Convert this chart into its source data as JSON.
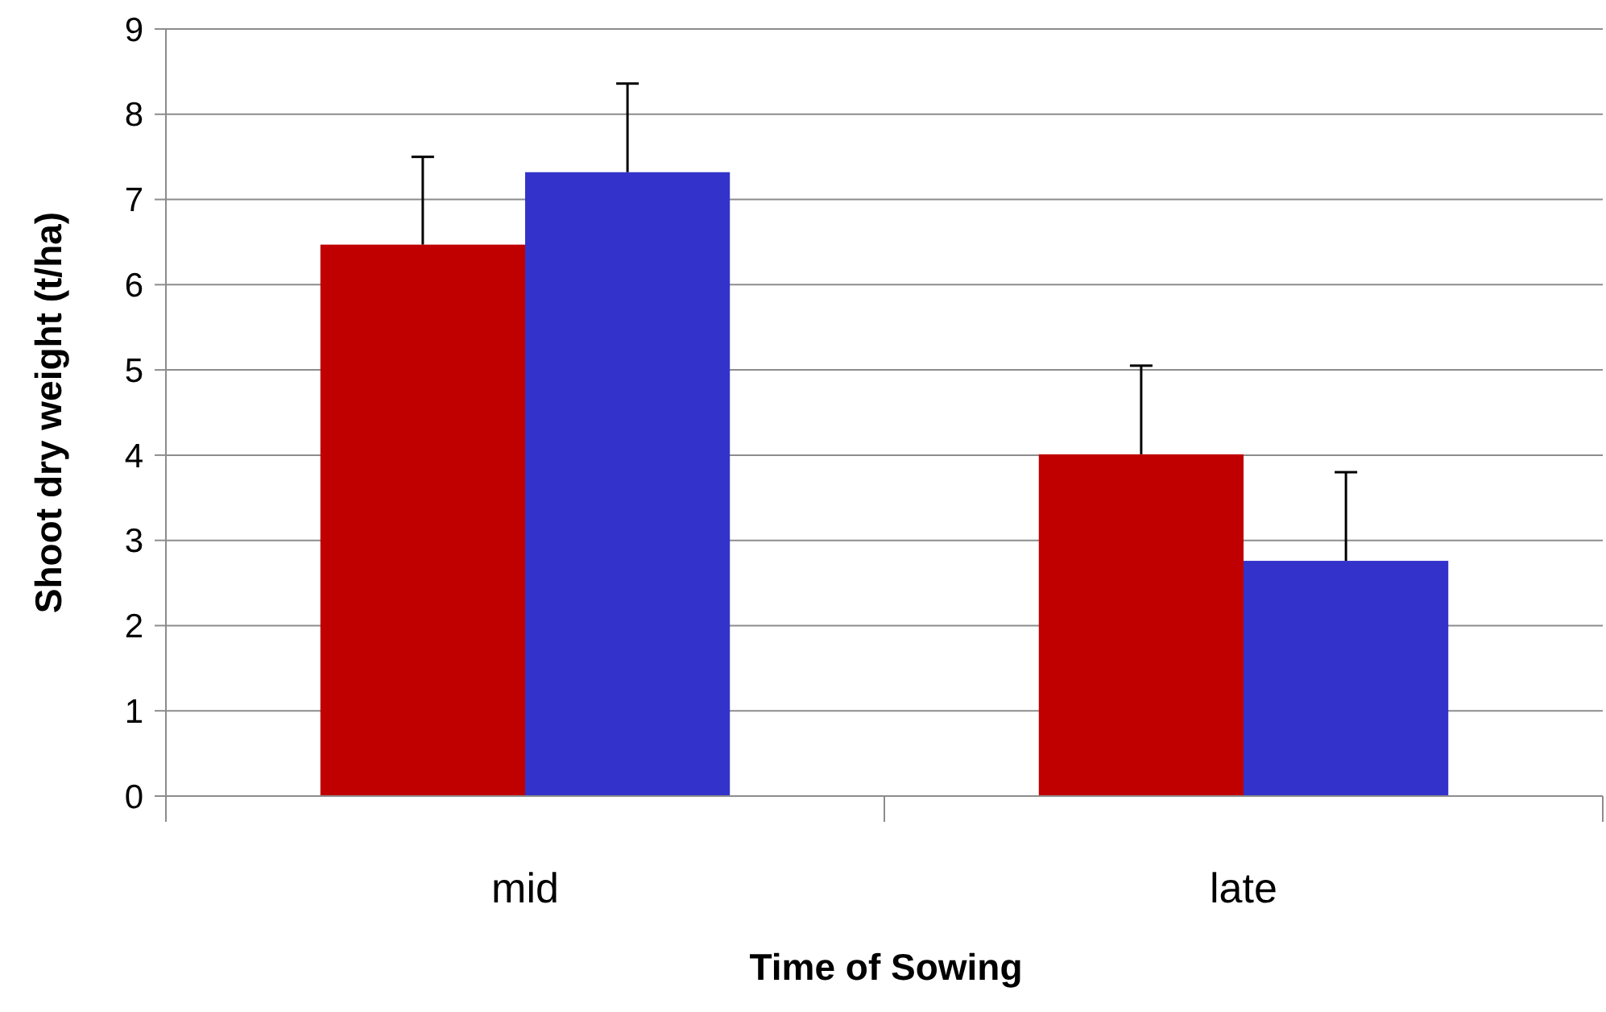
{
  "chart_data": {
    "type": "bar",
    "xlabel": "Time of Sowing",
    "ylabel": "Shoot dry weight (t/ha)",
    "categories": [
      "mid",
      "late"
    ],
    "series": [
      {
        "color": "#c00000",
        "values": [
          6.47,
          4.01
        ],
        "errors": [
          [
            6.47,
            7.5
          ],
          [
            4.01,
            5.05
          ]
        ]
      },
      {
        "color": "#3333cc",
        "values": [
          7.32,
          2.76
        ],
        "errors": [
          [
            7.32,
            8.36
          ],
          [
            2.76,
            3.8
          ]
        ]
      }
    ],
    "ylim": [
      0,
      9
    ],
    "yticks": [
      0,
      1,
      2,
      3,
      4,
      5,
      6,
      7,
      8,
      9
    ],
    "grid": "y"
  }
}
